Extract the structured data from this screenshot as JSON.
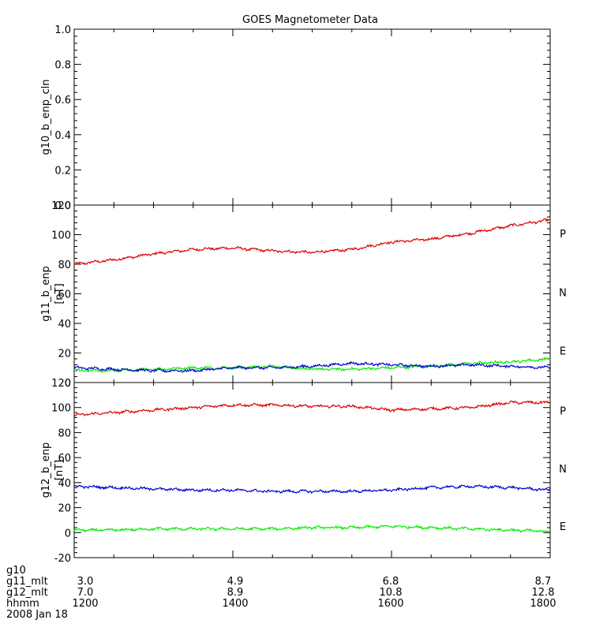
{
  "chart_data": {
    "type": "line",
    "title": "GOES Magnetometer Data",
    "x_hhmm": [
      1200,
      1400,
      1600,
      1800
    ],
    "xlim_hhmm": [
      1200,
      1800
    ],
    "panels": [
      {
        "ylabel": "g10_b_enp_cln",
        "unit": "",
        "ylim": [
          0,
          1
        ],
        "yticks": [
          "0.0",
          "0.2",
          "0.4",
          "0.6",
          "0.8",
          "1.0"
        ],
        "series": []
      },
      {
        "ylabel": "g11_b_enp",
        "unit": "[nT]",
        "ylim": [
          0,
          120
        ],
        "yticks": [
          "0",
          "20",
          "40",
          "60",
          "80",
          "100",
          "120"
        ],
        "series": [
          {
            "name": "P",
            "color": "#dd0000",
            "x": [
              1200,
              1230,
              1300,
              1330,
              1400,
              1430,
              1500,
              1530,
              1600,
              1630,
              1700,
              1730,
              1800
            ],
            "values": [
              80,
              83,
              87,
              90,
              91,
              89,
              88,
              90,
              95,
              97,
              101,
              106,
              110
            ]
          },
          {
            "name": "N",
            "color": "#00ee00",
            "x": [
              1200,
              1230,
              1300,
              1330,
              1400,
              1430,
              1500,
              1530,
              1600,
              1630,
              1700,
              1730,
              1800
            ],
            "values": [
              8,
              8,
              9,
              10,
              10,
              11,
              9,
              9,
              10,
              11,
              13,
              14,
              16
            ]
          },
          {
            "name": "E",
            "color": "#0000cc",
            "x": [
              1200,
              1230,
              1300,
              1330,
              1400,
              1430,
              1500,
              1530,
              1600,
              1630,
              1700,
              1730,
              1800
            ],
            "values": [
              10,
              9,
              8,
              8,
              10,
              10,
              11,
              13,
              12,
              11,
              12,
              11,
              10
            ]
          }
        ]
      },
      {
        "ylabel": "g12_b_enp",
        "unit": "[nT]",
        "ylim": [
          -20,
          120
        ],
        "yticks": [
          "-20",
          "0",
          "20",
          "40",
          "60",
          "80",
          "100",
          "120"
        ],
        "series": [
          {
            "name": "P",
            "color": "#dd0000",
            "x": [
              1200,
              1230,
              1300,
              1330,
              1400,
              1430,
              1500,
              1530,
              1600,
              1630,
              1700,
              1730,
              1800
            ],
            "values": [
              94,
              96,
              98,
              100,
              102,
              102,
              101,
              101,
              98,
              99,
              100,
              104,
              104
            ]
          },
          {
            "name": "N",
            "color": "#00ee00",
            "x": [
              1200,
              1230,
              1300,
              1330,
              1400,
              1430,
              1500,
              1530,
              1600,
              1630,
              1700,
              1730,
              1800
            ],
            "values": [
              2,
              2,
              3,
              3,
              3,
              3,
              4,
              4,
              5,
              4,
              3,
              2,
              1
            ]
          },
          {
            "name": "E",
            "color": "#0000cc",
            "x": [
              1200,
              1230,
              1300,
              1330,
              1400,
              1430,
              1500,
              1530,
              1600,
              1630,
              1700,
              1730,
              1800
            ],
            "values": [
              37,
              36,
              35,
              34,
              34,
              33,
              33,
              33,
              34,
              36,
              37,
              36,
              34
            ]
          }
        ]
      }
    ]
  },
  "footer": {
    "rows": [
      {
        "label": "g10",
        "values": []
      },
      {
        "label": "g11_mlt",
        "values": [
          "3.0",
          "4.9",
          "6.8",
          "8.7"
        ]
      },
      {
        "label": "g12_mlt",
        "values": [
          "7.0",
          "8.9",
          "10.8",
          "12.8"
        ]
      },
      {
        "label": "hhmm",
        "values": [
          "1200",
          "1400",
          "1600",
          "1800"
        ]
      },
      {
        "label": "2008 Jan 18",
        "values": []
      }
    ]
  }
}
